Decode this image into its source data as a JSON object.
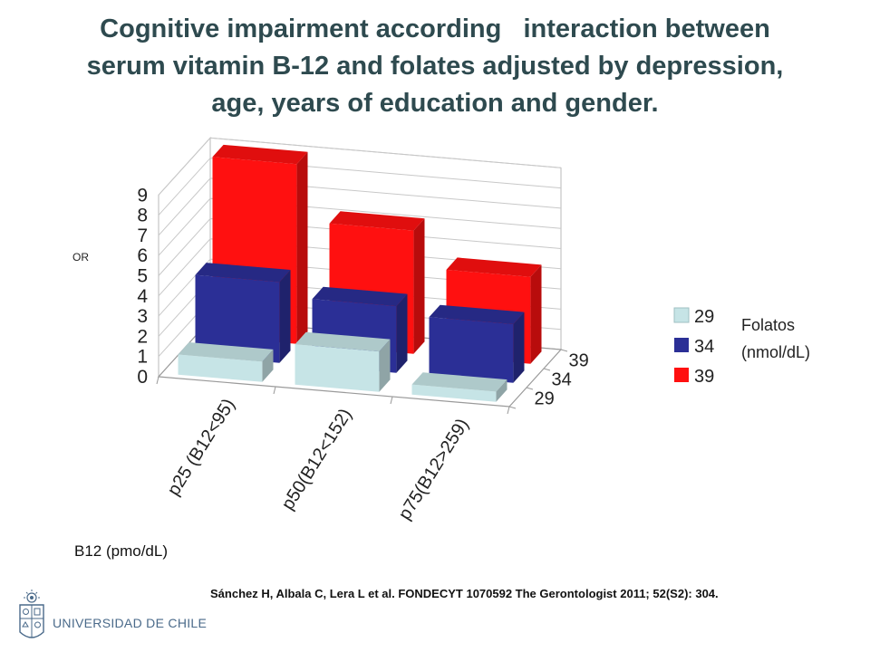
{
  "title_lines": [
    "Cognitive impairment according   interaction between",
    "serum vitamin B-12 and folates adjusted by depression,",
    "age, years of education and gender."
  ],
  "chart_data": {
    "type": "bar",
    "subtype": "3d-clustered",
    "categories": [
      "p25 (B12<95)",
      "p50(B12<152)",
      "p75(B12>259)"
    ],
    "series": [
      {
        "name": "29",
        "color": "#c6e4e6",
        "values": [
          1.0,
          2.0,
          0.5
        ]
      },
      {
        "name": "34",
        "color": "#2b2f96",
        "values": [
          4.0,
          3.3,
          2.9
        ]
      },
      {
        "name": "39",
        "color": "#ff1010",
        "values": [
          8.9,
          6.1,
          4.3
        ]
      }
    ],
    "ylabel": "OR",
    "xlabel": "B12 (pmo/dL)",
    "yticks": [
      "0",
      "1",
      "2",
      "3",
      "4",
      "5",
      "6",
      "7",
      "8",
      "9"
    ],
    "ylim": [
      0,
      9
    ],
    "depth_labels": [
      "29",
      "34",
      "39"
    ],
    "legend": {
      "title_line1": "Folatos",
      "title_line2": "(nmol/dL)",
      "entries": [
        "29",
        "34",
        "39"
      ],
      "position": "right"
    },
    "grid": true
  },
  "citation": "Sánchez H, Albala C, Lera L et al.  FONDECYT 1070592 The Gerontologist 2011; 52(S2): 304.",
  "logo_text": "UNIVERSIDAD DE CHILE"
}
